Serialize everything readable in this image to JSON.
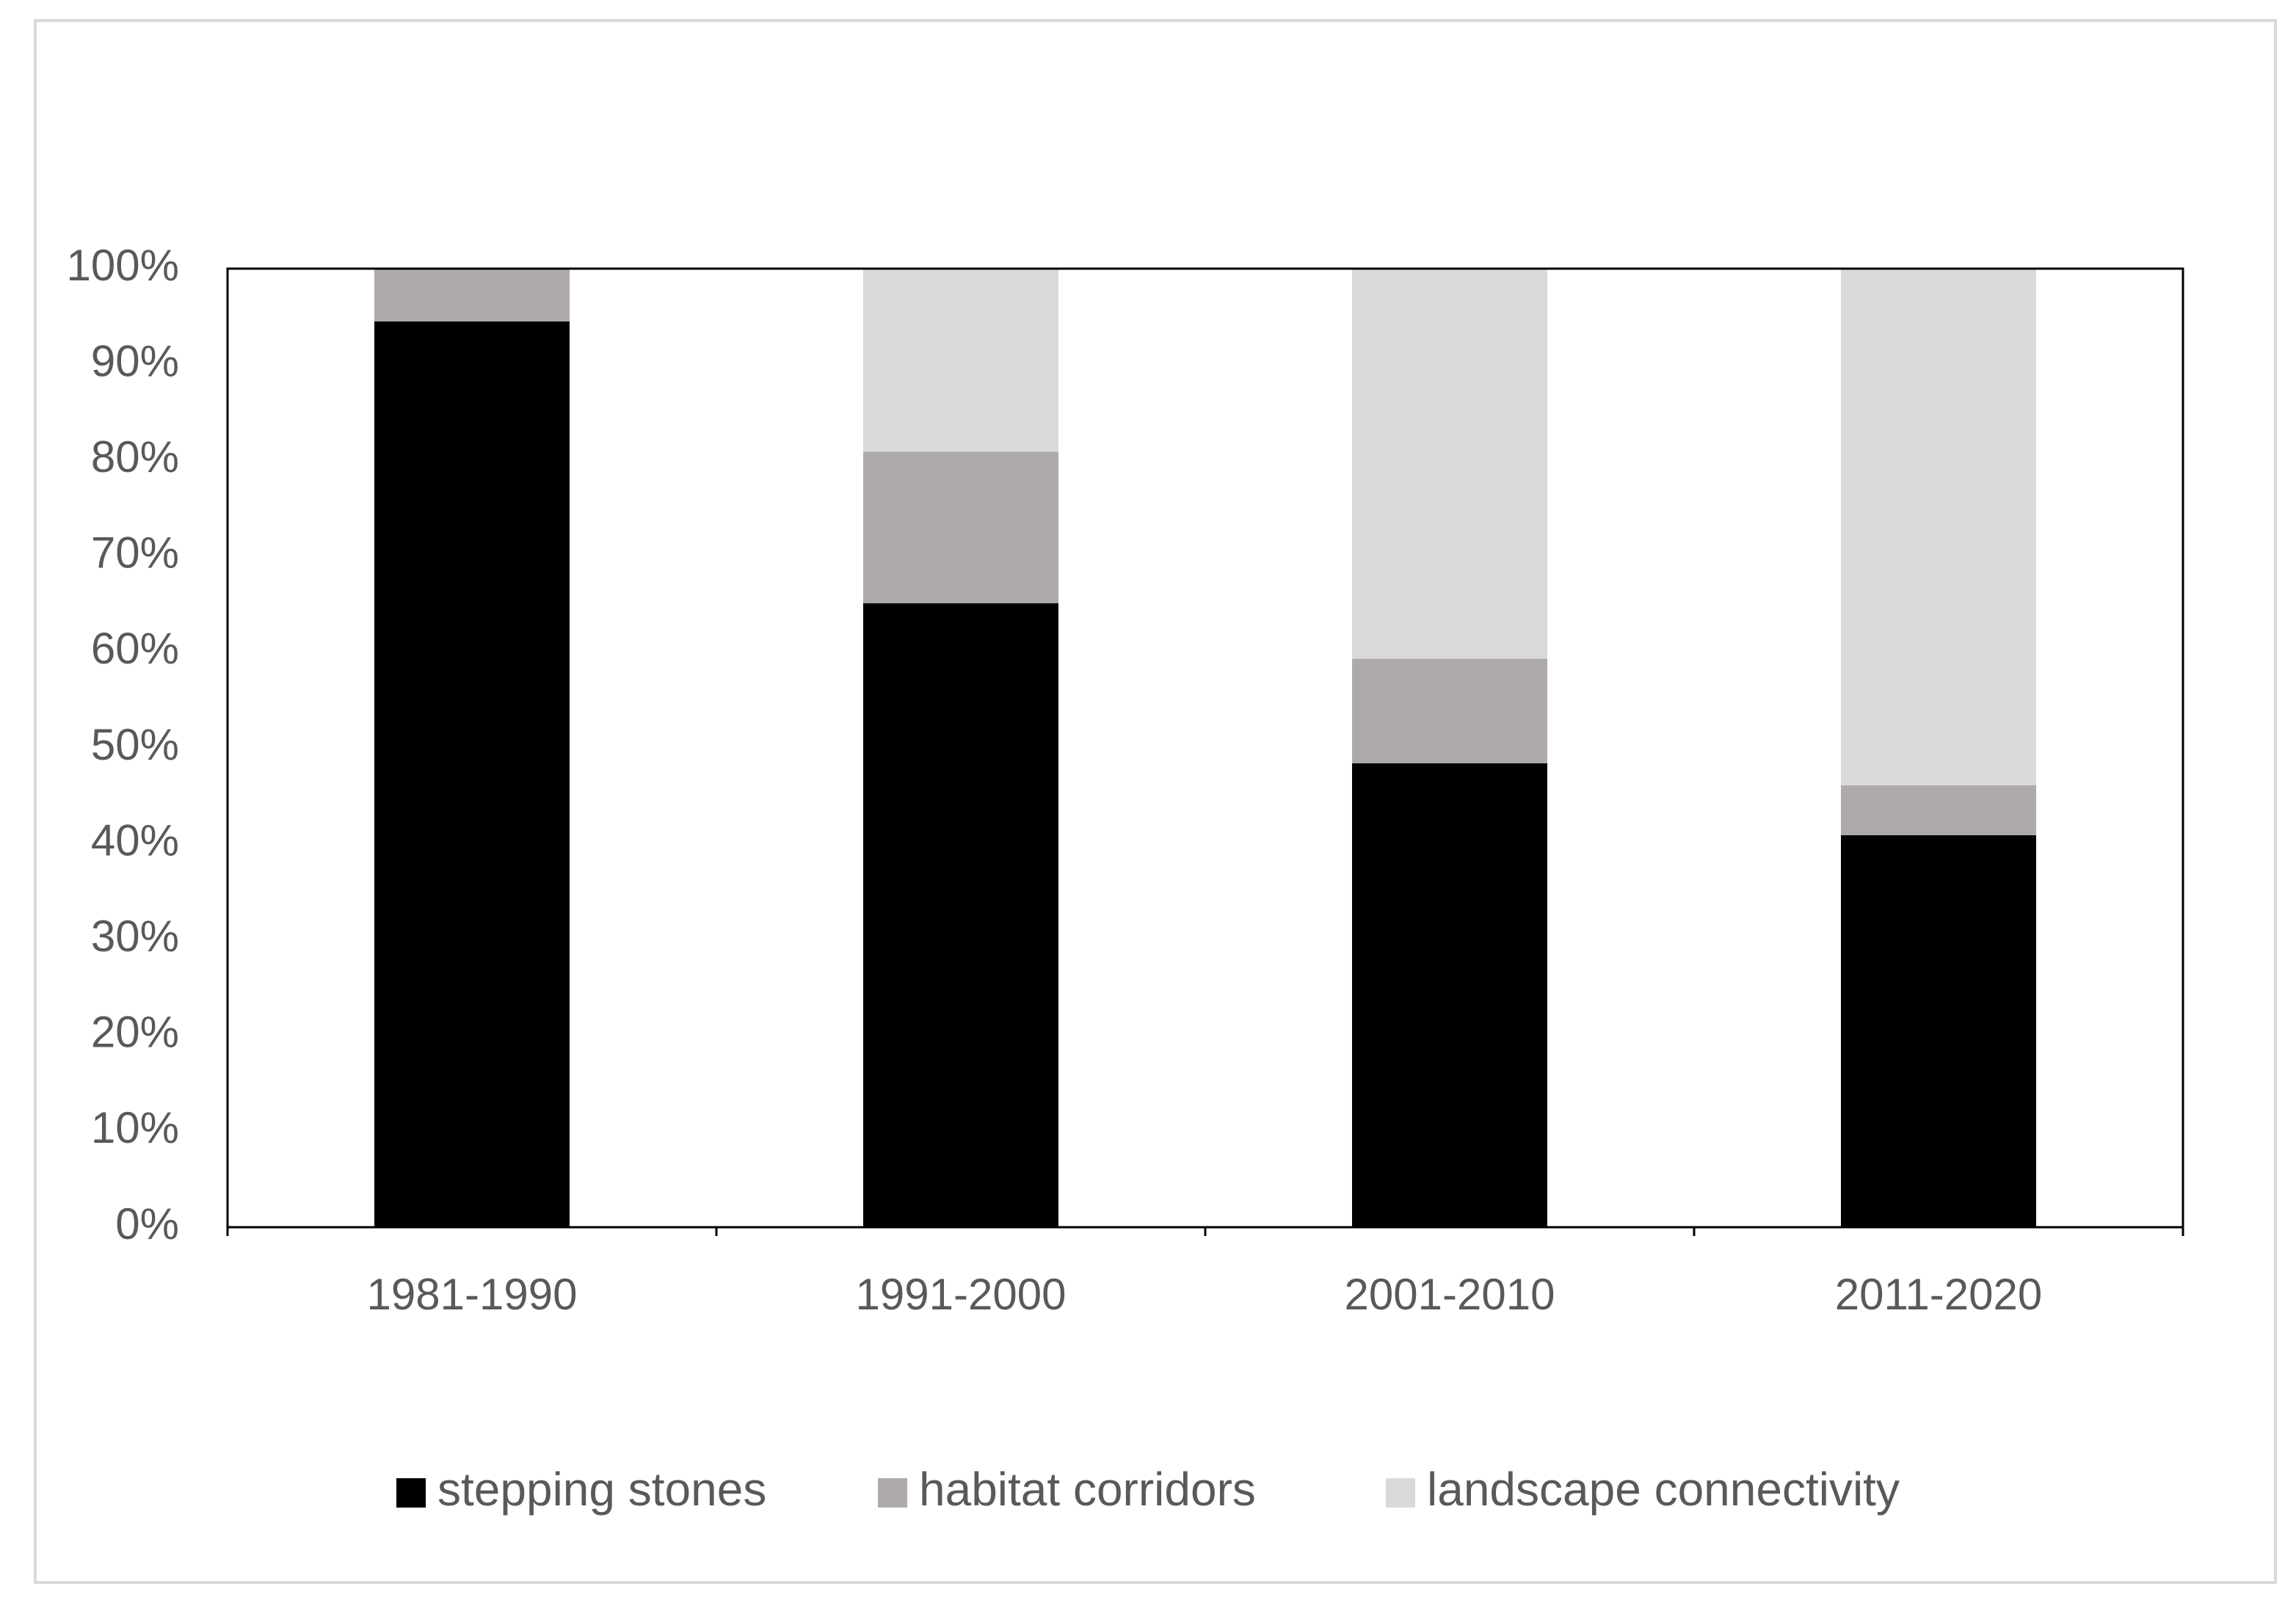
{
  "chart_data": {
    "type": "stacked_bar",
    "categories": [
      "1981-1990",
      "1991-2000",
      "2001-2010",
      "2011-2020"
    ],
    "series": [
      {
        "name": "stepping stones",
        "color": "#000000",
        "values": [
          94.5,
          65.1,
          48.4,
          40.9
        ]
      },
      {
        "name": "habitat corridors",
        "color": "#aeaaa9",
        "values": [
          5.5,
          15.8,
          10.9,
          5.2
        ]
      },
      {
        "name": "landscape connectivity",
        "color": "#d9d9d9",
        "values": [
          0,
          19.1,
          40.7,
          53.9
        ]
      }
    ],
    "ylim": [
      0,
      100
    ],
    "yticks": [
      {
        "value": 0,
        "label": "0%"
      },
      {
        "value": 10,
        "label": "10%"
      },
      {
        "value": 20,
        "label": "20%"
      },
      {
        "value": 30,
        "label": "30%"
      },
      {
        "value": 40,
        "label": "40%"
      },
      {
        "value": 50,
        "label": "50%"
      },
      {
        "value": 60,
        "label": "60%"
      },
      {
        "value": 70,
        "label": "70%"
      },
      {
        "value": 80,
        "label": "80%"
      },
      {
        "value": 90,
        "label": "90%"
      },
      {
        "value": 100,
        "label": "100%"
      }
    ],
    "grid": false,
    "legend": "bottom"
  }
}
